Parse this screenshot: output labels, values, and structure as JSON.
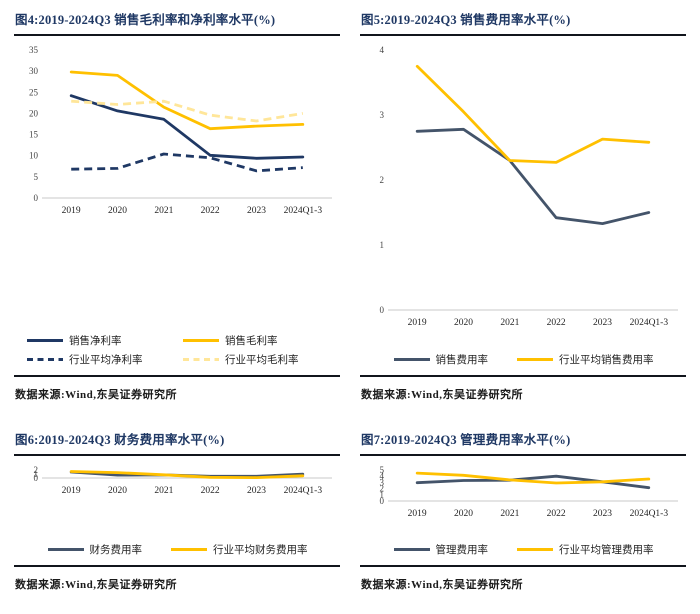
{
  "source_note": "数据来源:Wind,东吴证券研究所",
  "colors": {
    "navy": "#1f3864",
    "slate": "#44546a",
    "gold": "#ffc000",
    "light_gold": "#ffe699",
    "title_text": "#1f3864",
    "rule": "#11151c",
    "axis_line": "#c8c8c8",
    "tick_text": "#444444",
    "background": "#ffffff"
  },
  "chart_data": [
    {
      "type": "line",
      "title": "图4:2019-2024Q3 销售毛利率和净利率水平(%)",
      "categories": [
        "2019",
        "2020",
        "2021",
        "2022",
        "2023",
        "2024Q1-3"
      ],
      "series": [
        {
          "name": "销售净利率",
          "color": "#1f3864",
          "dash": false,
          "values": [
            24.2,
            20.6,
            18.6,
            10.1,
            9.4,
            9.7
          ]
        },
        {
          "name": "销售毛利率",
          "color": "#ffc000",
          "dash": false,
          "values": [
            29.8,
            29.0,
            21.5,
            16.4,
            17.0,
            17.4
          ]
        },
        {
          "name": "行业平均净利率",
          "color": "#1f3864",
          "dash": true,
          "values": [
            6.8,
            7.0,
            10.4,
            9.5,
            6.4,
            7.2
          ]
        },
        {
          "name": "行业平均毛利率",
          "color": "#ffe699",
          "dash": true,
          "values": [
            22.9,
            22.1,
            22.9,
            19.6,
            18.2,
            20.0
          ]
        }
      ],
      "ylim": [
        0,
        35
      ],
      "ytick_step": 5,
      "grid": false,
      "legend_position": "bottom",
      "source": "数据来源:Wind,东吴证券研究所"
    },
    {
      "type": "line",
      "title": "图5:2019-2024Q3 销售费用率水平(%)",
      "categories": [
        "2019",
        "2020",
        "2021",
        "2022",
        "2023",
        "2024Q1-3"
      ],
      "series": [
        {
          "name": "销售费用率",
          "color": "#44546a",
          "dash": false,
          "values": [
            2.75,
            2.78,
            2.3,
            1.42,
            1.33,
            1.5
          ]
        },
        {
          "name": "行业平均销售费用率",
          "color": "#ffc000",
          "dash": false,
          "values": [
            3.75,
            3.05,
            2.3,
            2.27,
            2.63,
            2.58
          ]
        }
      ],
      "ylim": [
        0,
        4
      ],
      "ytick_step": 1,
      "grid": false,
      "legend_position": "bottom",
      "source": "数据来源:Wind,东吴证券研究所"
    },
    {
      "type": "line",
      "title": "图6:2019-2024Q3 财务费用率水平(%)",
      "categories": [
        "2019",
        "2020",
        "2021",
        "2022",
        "2023",
        "2024Q1-3"
      ],
      "series": [
        {
          "name": "财务费用率",
          "color": "#44546a",
          "dash": false,
          "values": [
            1.5,
            0.73,
            0.78,
            0.42,
            0.42,
            0.98
          ]
        },
        {
          "name": "行业平均财务费用率",
          "color": "#ffc000",
          "dash": false,
          "values": [
            1.62,
            1.35,
            0.8,
            0.17,
            0.1,
            0.55
          ]
        }
      ],
      "ylim": [
        0,
        2
      ],
      "ytick_step": 1,
      "grid": false,
      "legend_position": "bottom",
      "source": "数据来源:Wind,东吴证券研究所"
    },
    {
      "type": "line",
      "title": "图7:2019-2024Q3 管理费用率水平(%)",
      "categories": [
        "2019",
        "2020",
        "2021",
        "2022",
        "2023",
        "2024Q1-3"
      ],
      "series": [
        {
          "name": "管理费用率",
          "color": "#44546a",
          "dash": false,
          "values": [
            2.95,
            3.3,
            3.35,
            4.0,
            3.1,
            2.15
          ]
        },
        {
          "name": "行业平均管理费用率",
          "color": "#ffc000",
          "dash": false,
          "values": [
            4.5,
            4.15,
            3.4,
            2.9,
            3.1,
            3.55
          ]
        }
      ],
      "ylim": [
        0,
        5
      ],
      "ytick_step": 1,
      "grid": false,
      "legend_position": "bottom",
      "source": "数据来源:Wind,东吴证券研究所"
    }
  ]
}
